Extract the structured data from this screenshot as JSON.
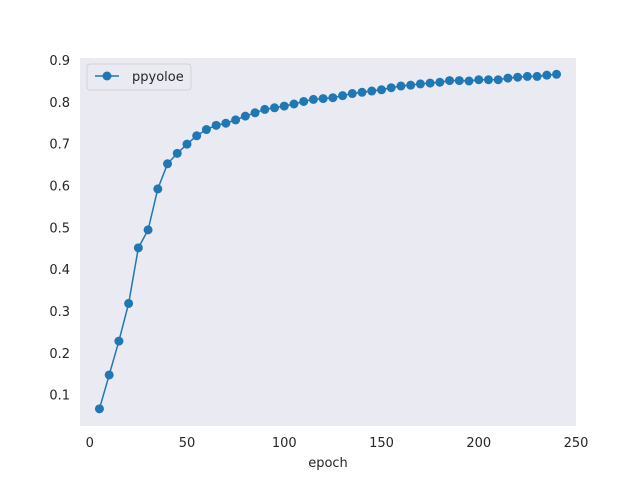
{
  "chart_data": {
    "type": "line",
    "title": "",
    "xlabel": "epoch",
    "ylabel": "",
    "xlim": [
      -5,
      250
    ],
    "ylim": [
      0.025,
      0.905
    ],
    "xticks": [
      0,
      50,
      100,
      150,
      200,
      250
    ],
    "yticks": [
      0.1,
      0.2,
      0.3,
      0.4,
      0.5,
      0.6,
      0.7,
      0.8,
      0.9
    ],
    "grid": false,
    "legend_position": "top-left",
    "background_color": "#eaeaf2",
    "series": [
      {
        "name": "ppyoloe",
        "color": "#1f77b4",
        "marker": "circle",
        "x": [
          5,
          10,
          15,
          20,
          25,
          30,
          35,
          40,
          45,
          50,
          55,
          60,
          65,
          70,
          75,
          80,
          85,
          90,
          95,
          100,
          105,
          110,
          115,
          120,
          125,
          130,
          135,
          140,
          145,
          150,
          155,
          160,
          165,
          170,
          175,
          180,
          185,
          190,
          195,
          200,
          205,
          210,
          215,
          220,
          225,
          230,
          235,
          240
        ],
        "y": [
          0.066,
          0.147,
          0.228,
          0.318,
          0.451,
          0.494,
          0.592,
          0.652,
          0.677,
          0.699,
          0.719,
          0.734,
          0.744,
          0.749,
          0.757,
          0.766,
          0.774,
          0.782,
          0.786,
          0.79,
          0.795,
          0.801,
          0.806,
          0.808,
          0.81,
          0.815,
          0.82,
          0.823,
          0.826,
          0.829,
          0.834,
          0.838,
          0.84,
          0.843,
          0.845,
          0.847,
          0.851,
          0.851,
          0.85,
          0.853,
          0.853,
          0.853,
          0.857,
          0.859,
          0.861,
          0.861,
          0.864,
          0.866
        ]
      }
    ]
  }
}
